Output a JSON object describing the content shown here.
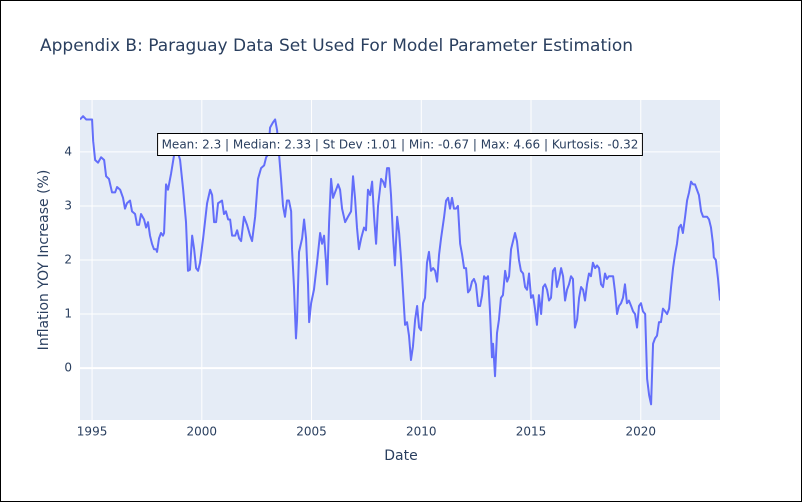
{
  "chart_data": {
    "type": "line",
    "title": "Appendix B: Paraguay Data Set Used For Model Parameter Estimation",
    "x_label": "Date",
    "y_label": "Inflation YOY Increase (%)",
    "annotation": "Mean: 2.3 | Median: 2.33 | St Dev :1.01 | Min: -0.67 | Max: 4.66 | Kurtosis: -0.32",
    "xlim": [
      1994.45,
      2023.61
    ],
    "ylim": [
      -0.96,
      4.96
    ],
    "xticks": [
      1995,
      2000,
      2005,
      2010,
      2015,
      2020
    ],
    "yticks": [
      0,
      1,
      2,
      3,
      4
    ],
    "grid": true,
    "color": "#636efa",
    "x": [
      1994.45,
      1994.59,
      1994.73,
      1995.0,
      1995.05,
      1995.14,
      1995.27,
      1995.41,
      1995.55,
      1995.64,
      1995.77,
      1995.91,
      1996.05,
      1996.14,
      1996.28,
      1996.41,
      1996.5,
      1996.59,
      1996.73,
      1996.82,
      1996.96,
      1997.05,
      1997.14,
      1997.23,
      1997.37,
      1997.46,
      1997.55,
      1997.64,
      1997.73,
      1997.82,
      1997.92,
      1997.96,
      1998.05,
      1998.14,
      1998.23,
      1998.28,
      1998.37,
      1998.46,
      1998.6,
      1998.74,
      1998.87,
      1999.01,
      1999.15,
      1999.28,
      1999.37,
      1999.46,
      1999.56,
      1999.65,
      1999.74,
      1999.83,
      1999.92,
      2000.06,
      2000.24,
      2000.38,
      2000.47,
      2000.56,
      2000.65,
      2000.74,
      2000.92,
      2001.01,
      2001.1,
      2001.2,
      2001.29,
      2001.38,
      2001.52,
      2001.61,
      2001.7,
      2001.79,
      2001.92,
      2002.06,
      2002.2,
      2002.29,
      2002.43,
      2002.56,
      2002.7,
      2002.84,
      2002.93,
      2003.02,
      2003.11,
      2003.25,
      2003.34,
      2003.43,
      2003.52,
      2003.61,
      2003.7,
      2003.79,
      2003.88,
      2003.97,
      2004.07,
      2004.11,
      2004.2,
      2004.29,
      2004.34,
      2004.43,
      2004.57,
      2004.66,
      2004.75,
      2004.84,
      2004.89,
      2004.98,
      2005.11,
      2005.25,
      2005.39,
      2005.48,
      2005.57,
      2005.66,
      2005.71,
      2005.8,
      2005.89,
      2005.98,
      2006.07,
      2006.21,
      2006.3,
      2006.39,
      2006.53,
      2006.66,
      2006.8,
      2006.89,
      2006.98,
      2007.07,
      2007.16,
      2007.26,
      2007.39,
      2007.48,
      2007.57,
      2007.67,
      2007.76,
      2007.85,
      2007.94,
      2008.03,
      2008.17,
      2008.26,
      2008.35,
      2008.44,
      2008.53,
      2008.62,
      2008.71,
      2008.8,
      2008.9,
      2008.99,
      2009.08,
      2009.17,
      2009.26,
      2009.35,
      2009.44,
      2009.53,
      2009.62,
      2009.72,
      2009.81,
      2009.9,
      2009.99,
      2010.08,
      2010.17,
      2010.26,
      2010.35,
      2010.44,
      2010.54,
      2010.63,
      2010.72,
      2010.81,
      2010.9,
      2011.04,
      2011.13,
      2011.22,
      2011.31,
      2011.4,
      2011.49,
      2011.58,
      2011.67,
      2011.77,
      2011.86,
      2011.95,
      2012.04,
      2012.13,
      2012.22,
      2012.31,
      2012.4,
      2012.49,
      2012.59,
      2012.68,
      2012.77,
      2012.86,
      2012.95,
      2013.04,
      2013.13,
      2013.22,
      2013.27,
      2013.36,
      2013.45,
      2013.54,
      2013.63,
      2013.72,
      2013.82,
      2013.91,
      2014.0,
      2014.09,
      2014.18,
      2014.27,
      2014.36,
      2014.45,
      2014.54,
      2014.64,
      2014.73,
      2014.82,
      2014.91,
      2015.0,
      2015.09,
      2015.18,
      2015.27,
      2015.36,
      2015.46,
      2015.55,
      2015.64,
      2015.73,
      2015.82,
      2015.91,
      2016.0,
      2016.09,
      2016.18,
      2016.28,
      2016.37,
      2016.46,
      2016.55,
      2016.64,
      2016.73,
      2016.82,
      2016.91,
      2017.0,
      2017.1,
      2017.19,
      2017.28,
      2017.37,
      2017.46,
      2017.55,
      2017.64,
      2017.73,
      2017.82,
      2017.92,
      2018.01,
      2018.1,
      2018.19,
      2018.28,
      2018.37,
      2018.46,
      2018.55,
      2018.64,
      2018.74,
      2018.83,
      2018.92,
      2019.01,
      2019.1,
      2019.19,
      2019.28,
      2019.37,
      2019.46,
      2019.56,
      2019.65,
      2019.74,
      2019.83,
      2019.92,
      2020.01,
      2020.1,
      2020.2,
      2020.29,
      2020.38,
      2020.47,
      2020.56,
      2020.65,
      2020.74,
      2020.83,
      2020.92,
      2021.01,
      2021.11,
      2021.2,
      2021.29,
      2021.38,
      2021.47,
      2021.56,
      2021.65,
      2021.74,
      2021.83,
      2021.92,
      2022.02,
      2022.11,
      2022.2,
      2022.29,
      2022.38,
      2022.47,
      2022.56,
      2022.65,
      2022.75,
      2022.84,
      2022.93,
      2023.02,
      2023.11,
      2023.2,
      2023.29,
      2023.33,
      2023.42,
      2023.52,
      2023.61
    ],
    "values": [
      4.6,
      4.66,
      4.6,
      4.6,
      4.2,
      3.85,
      3.8,
      3.9,
      3.85,
      3.55,
      3.5,
      3.25,
      3.25,
      3.35,
      3.3,
      3.15,
      2.95,
      3.05,
      3.1,
      2.9,
      2.85,
      2.65,
      2.65,
      2.85,
      2.75,
      2.6,
      2.7,
      2.45,
      2.3,
      2.2,
      2.2,
      2.15,
      2.4,
      2.5,
      2.45,
      2.5,
      3.4,
      3.3,
      3.6,
      3.95,
      4.05,
      3.85,
      3.3,
      2.7,
      1.8,
      1.82,
      2.45,
      2.2,
      1.85,
      1.8,
      1.95,
      2.4,
      3.05,
      3.3,
      3.2,
      2.7,
      2.7,
      3.05,
      3.1,
      2.85,
      2.9,
      2.75,
      2.75,
      2.45,
      2.45,
      2.55,
      2.4,
      2.35,
      2.8,
      2.65,
      2.45,
      2.35,
      2.8,
      3.5,
      3.7,
      3.75,
      3.9,
      3.95,
      4.45,
      4.55,
      4.6,
      4.4,
      3.95,
      3.5,
      3.0,
      2.8,
      3.1,
      3.1,
      2.9,
      2.2,
      1.5,
      0.55,
      0.9,
      2.15,
      2.4,
      2.75,
      2.4,
      1.55,
      0.85,
      1.2,
      1.45,
      1.95,
      2.5,
      2.3,
      2.45,
      1.95,
      1.55,
      2.7,
      3.5,
      3.15,
      3.25,
      3.4,
      3.3,
      2.95,
      2.7,
      2.8,
      2.9,
      3.55,
      3.15,
      2.6,
      2.2,
      2.4,
      2.6,
      2.55,
      3.3,
      3.2,
      3.45,
      2.8,
      2.3,
      3.0,
      3.5,
      3.45,
      3.35,
      3.7,
      3.7,
      3.2,
      2.45,
      1.9,
      2.8,
      2.5,
      2.0,
      1.4,
      0.8,
      0.85,
      0.6,
      0.15,
      0.4,
      0.9,
      1.15,
      0.75,
      0.7,
      1.2,
      1.3,
      1.95,
      2.15,
      1.8,
      1.85,
      1.8,
      1.6,
      2.1,
      2.4,
      2.8,
      3.1,
      3.15,
      2.95,
      3.15,
      2.95,
      2.95,
      3.0,
      2.3,
      2.1,
      1.85,
      1.85,
      1.4,
      1.45,
      1.6,
      1.65,
      1.55,
      1.15,
      1.15,
      1.35,
      1.7,
      1.65,
      1.7,
      1.05,
      0.2,
      0.45,
      -0.15,
      0.65,
      0.9,
      1.3,
      1.35,
      1.8,
      1.6,
      1.7,
      2.2,
      2.35,
      2.5,
      2.35,
      2.0,
      1.8,
      1.75,
      1.5,
      1.45,
      1.75,
      1.3,
      1.35,
      1.1,
      0.8,
      1.35,
      1.0,
      1.5,
      1.55,
      1.45,
      1.25,
      1.3,
      1.8,
      1.85,
      1.5,
      1.65,
      1.85,
      1.7,
      1.25,
      1.45,
      1.55,
      1.7,
      1.65,
      0.75,
      0.9,
      1.3,
      1.5,
      1.45,
      1.25,
      1.55,
      1.75,
      1.7,
      1.95,
      1.85,
      1.9,
      1.85,
      1.55,
      1.5,
      1.75,
      1.65,
      1.7,
      1.7,
      1.7,
      1.4,
      1.0,
      1.15,
      1.2,
      1.3,
      1.55,
      1.2,
      1.25,
      1.15,
      1.05,
      1.0,
      0.75,
      1.15,
      1.2,
      1.05,
      1.0,
      -0.2,
      -0.5,
      -0.67,
      0.45,
      0.55,
      0.6,
      0.85,
      0.85,
      1.1,
      1.05,
      1.0,
      1.1,
      1.5,
      1.85,
      2.1,
      2.3,
      2.6,
      2.65,
      2.5,
      2.8,
      3.1,
      3.25,
      3.45,
      3.4,
      3.4,
      3.3,
      3.2,
      2.9,
      2.8,
      2.8,
      2.8,
      2.75,
      2.6,
      2.3,
      2.05,
      2.0,
      1.65,
      1.25
    ]
  }
}
